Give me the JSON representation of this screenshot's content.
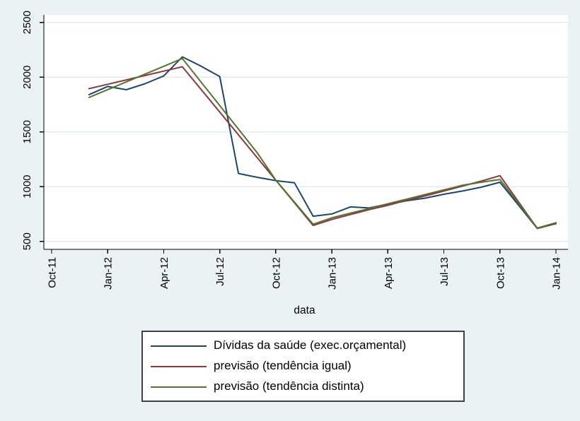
{
  "chart_data": {
    "type": "line",
    "title": "",
    "xlabel": "data",
    "ylabel": "",
    "grid": true,
    "legend_position": "bottom-center",
    "ylim": [
      425,
      2570
    ],
    "y_tick_labels": [
      "500",
      "1000",
      "1500",
      "2000",
      "2500"
    ],
    "x_tick_labels": [
      "Oct-11",
      "Jan-12",
      "Apr-12",
      "Jul-12",
      "Oct-12",
      "Jan-13",
      "Apr-13",
      "Jul-13",
      "Oct-13",
      "Jan-14"
    ],
    "categories": [
      "Dec-11",
      "Jan-12",
      "Feb-12",
      "Mar-12",
      "Apr-12",
      "May-12",
      "Jun-12",
      "Jul-12",
      "Aug-12",
      "Sep-12",
      "Oct-12",
      "Nov-12",
      "Dec-12",
      "Jan-13",
      "Feb-13",
      "Mar-13",
      "Apr-13",
      "May-13",
      "Jun-13",
      "Jul-13",
      "Aug-13",
      "Sep-13",
      "Oct-13",
      "Nov-13",
      "Dec-13",
      "Jan-14"
    ],
    "series": [
      {
        "name": "Dívidas da saúde (exec.orçamental)",
        "color": "#1a476f",
        "values": [
          1840,
          1915,
          1885,
          1940,
          2010,
          2185,
          2100,
          2005,
          1120,
          1085,
          1055,
          1035,
          730,
          750,
          815,
          805,
          840,
          870,
          895,
          930,
          960,
          995,
          1040,
          830,
          618,
          662
        ]
      },
      {
        "name": "previsão (tendência igual)",
        "color": "#90353b",
        "values": [
          1895,
          1935,
          1975,
          2015,
          2055,
          2095,
          1888,
          1681,
          1473,
          1266,
          1059,
          852,
          645,
          700,
          745,
          790,
          830,
          875,
          915,
          960,
          1005,
          1050,
          1100,
          860,
          618,
          666
        ]
      },
      {
        "name": "previsão (tendência distinta)",
        "color": "#55752f",
        "values": [
          1815,
          1886,
          1957,
          2028,
          2099,
          2170,
          1955,
          1740,
          1525,
          1310,
          1060,
          858,
          657,
          715,
          758,
          800,
          843,
          885,
          928,
          970,
          1013,
          1040,
          1065,
          845,
          622,
          670
        ]
      }
    ]
  },
  "legend": {
    "items": [
      {
        "label": "Dívidas da saúde (exec.orçamental)",
        "color": "#1a476f"
      },
      {
        "label": "previsão (tendência igual)",
        "color": "#90353b"
      },
      {
        "label": "previsão (tendência distinta)",
        "color": "#55752f"
      }
    ]
  },
  "colors": {
    "background": "#eaf2f3",
    "plot_background": "#ffffff",
    "gridline": "#e3edee",
    "axis": "#000000",
    "legend_border": "#3b4345"
  }
}
